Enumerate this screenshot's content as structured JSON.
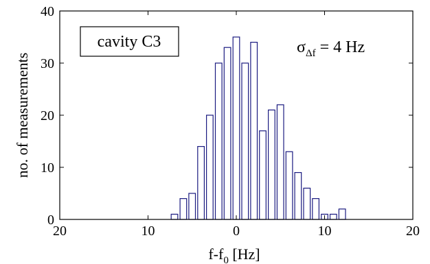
{
  "chart_data": {
    "type": "bar",
    "title": "",
    "xlabel": "f-f",
    "xlabel_sub": "0",
    "xlabel_unit": " [Hz]",
    "ylabel": "no. of measurements",
    "xlim": [
      -20,
      20
    ],
    "ylim": [
      0,
      40
    ],
    "xticks": [
      -20,
      -10,
      0,
      10,
      20
    ],
    "xtick_labels": [
      "20",
      "10",
      "0",
      "10",
      "20"
    ],
    "yticks": [
      0,
      10,
      20,
      30,
      40
    ],
    "bin_width": 1,
    "bin_centers": [
      -7,
      -6,
      -5,
      -4,
      -3,
      -2,
      -1,
      0,
      1,
      2,
      3,
      4,
      5,
      6,
      7,
      8,
      9,
      10,
      11,
      12
    ],
    "values": [
      1,
      4,
      5,
      14,
      20,
      30,
      33,
      35,
      30,
      34,
      17,
      21,
      22,
      13,
      9,
      6,
      4,
      1,
      1,
      2
    ],
    "bar_color": "#1a1a80",
    "grid": false,
    "annotations": {
      "box_label": "cavity C3",
      "sigma_symbol": "σ",
      "sigma_subscript": "Δf",
      "sigma_value": " = 4 Hz"
    }
  }
}
